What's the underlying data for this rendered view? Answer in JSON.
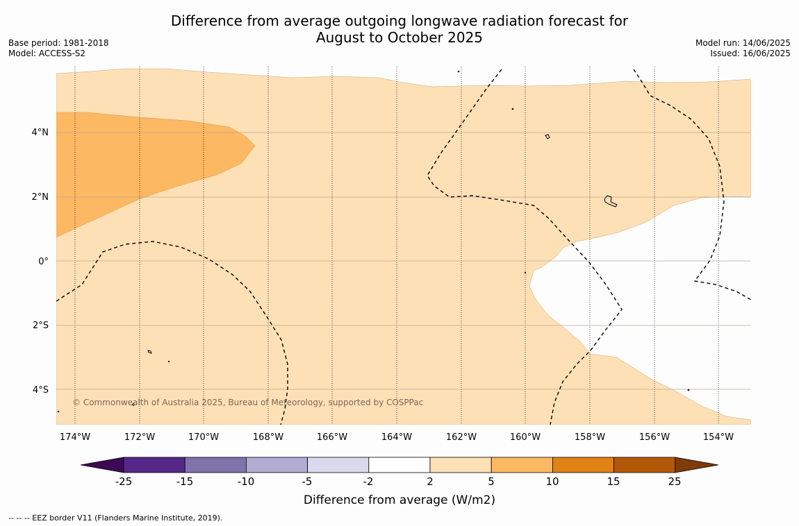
{
  "title_line1": "Difference from average outgoing longwave radiation forecast for",
  "title_line2": "August to October 2025",
  "meta_left": {
    "base_period": "Base period: 1981-2018",
    "model": "Model: ACCESS-S2"
  },
  "meta_right": {
    "model_run": "Model run: 14/06/2025",
    "issued": "Issued: 16/06/2025"
  },
  "map": {
    "lon_labels": [
      "174°W",
      "172°W",
      "170°W",
      "168°W",
      "166°W",
      "164°W",
      "162°W",
      "160°W",
      "158°W",
      "156°W",
      "154°W"
    ],
    "lat_labels": [
      "4°N",
      "2°N",
      "0°",
      "2°S",
      "4°S"
    ],
    "copyright": "© Commonwealth of Australia 2025, Bureau of Meteorology, supported by COSPPac"
  },
  "colorbar": {
    "ticks": [
      "-25",
      "-15",
      "-10",
      "-5",
      "-2",
      "2",
      "5",
      "10",
      "15",
      "25"
    ],
    "colors": [
      "#3c0a55",
      "#542788",
      "#8073ac",
      "#b2abd2",
      "#d8daeb",
      "#ffffff",
      "#fde0b6",
      "#fdb863",
      "#e08214",
      "#b35806",
      "#7f3b08"
    ],
    "title": "Difference from average (W/m2)"
  },
  "legend_note": "--  --  -- EEZ border V11 (Flanders Marine Institute, 2019)."
}
